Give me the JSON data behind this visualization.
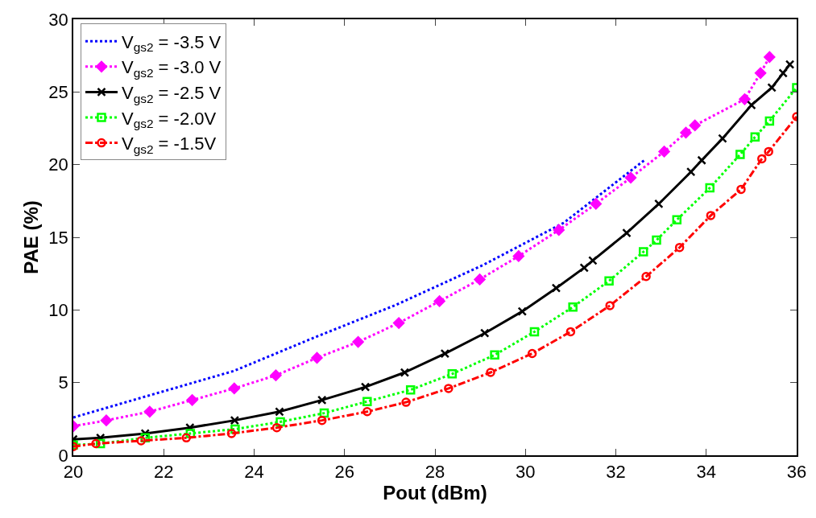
{
  "chart_data": {
    "type": "line",
    "xlabel": "Pout (dBm)",
    "ylabel": "PAE (%)",
    "xlim": [
      20,
      36
    ],
    "xticks": [
      20,
      22,
      24,
      26,
      28,
      30,
      32,
      34,
      36
    ],
    "ylim": [
      0,
      30
    ],
    "yticks": [
      0,
      5,
      10,
      15,
      20,
      25,
      30
    ],
    "grid": false,
    "legend": "top left",
    "series": [
      {
        "name": "V$_{gs2}$ = -3.5 V",
        "color": "#0000ff",
        "line_style": "dotted",
        "marker": "none",
        "x": [
          20,
          21.77,
          23.55,
          25.33,
          27.1,
          29.07,
          30.85,
          32.63
        ],
        "values": [
          2.6,
          4.2,
          5.8,
          8.1,
          10.3,
          13.1,
          16.0,
          20.3
        ]
      },
      {
        "name": "V$_{gs2}$ = -3.0 V",
        "color": "#ff00ff",
        "line_style": "dotted",
        "marker": "diamond",
        "x": [
          20,
          20.73,
          21.69,
          22.63,
          23.56,
          24.48,
          25.39,
          26.3,
          27.2,
          28.1,
          28.99,
          29.85,
          30.74,
          31.56,
          32.33,
          33.07,
          33.55,
          33.75,
          34.85,
          35.2,
          35.4
        ],
        "values": [
          2.0,
          2.4,
          3.0,
          3.8,
          4.6,
          5.5,
          6.7,
          7.8,
          9.1,
          10.6,
          12.1,
          13.7,
          15.5,
          17.3,
          19.1,
          20.9,
          22.2,
          22.7,
          24.5,
          26.3,
          27.4
        ]
      },
      {
        "name": "V$_{gs2}$ = -2.5 V",
        "color": "#000000",
        "line_style": "solid",
        "marker": "cross",
        "x": [
          20,
          20.6,
          21.59,
          22.58,
          23.57,
          24.56,
          25.5,
          26.46,
          27.33,
          28.22,
          29.1,
          29.93,
          30.68,
          31.3,
          31.49,
          32.24,
          32.95,
          33.66,
          33.9,
          34.36,
          35.0,
          35.45,
          35.7,
          35.85
        ],
        "values": [
          1.1,
          1.2,
          1.5,
          1.9,
          2.4,
          3.0,
          3.8,
          4.7,
          5.7,
          7.0,
          8.4,
          9.9,
          11.5,
          12.9,
          13.4,
          15.3,
          17.3,
          19.5,
          20.3,
          21.8,
          24.1,
          25.3,
          26.3,
          26.9
        ]
      },
      {
        "name": "V$_{gs2}$ = -2.0V",
        "color": "#00ff00",
        "line_style": "dotted",
        "marker": "square",
        "x": [
          20,
          20.6,
          21.59,
          22.59,
          23.58,
          24.58,
          25.55,
          26.5,
          27.46,
          28.38,
          29.32,
          30.2,
          31.05,
          31.85,
          32.61,
          32.9,
          33.35,
          34.08,
          34.75,
          35.08,
          35.4,
          36
        ],
        "values": [
          0.7,
          0.8,
          1.2,
          1.5,
          1.8,
          2.3,
          2.9,
          3.7,
          4.5,
          5.6,
          6.9,
          8.5,
          10.2,
          12.0,
          14.0,
          14.8,
          16.2,
          18.4,
          20.7,
          21.9,
          23.0,
          25.3
        ]
      },
      {
        "name": "V$_{gs2}$ = -1.5V",
        "color": "#ff0000",
        "line_style": "dashdot",
        "marker": "circle",
        "x": [
          20,
          20.5,
          21.5,
          22.5,
          23.5,
          24.5,
          25.5,
          26.5,
          27.36,
          28.3,
          29.23,
          30.15,
          31.0,
          31.87,
          32.67,
          33.41,
          34.1,
          34.77,
          35.23,
          35.38,
          36
        ],
        "values": [
          0.6,
          0.8,
          1.0,
          1.2,
          1.5,
          1.9,
          2.4,
          3.0,
          3.65,
          4.6,
          5.7,
          7.0,
          8.5,
          10.3,
          12.3,
          14.3,
          16.5,
          18.3,
          20.4,
          20.9,
          23.3
        ]
      }
    ]
  }
}
